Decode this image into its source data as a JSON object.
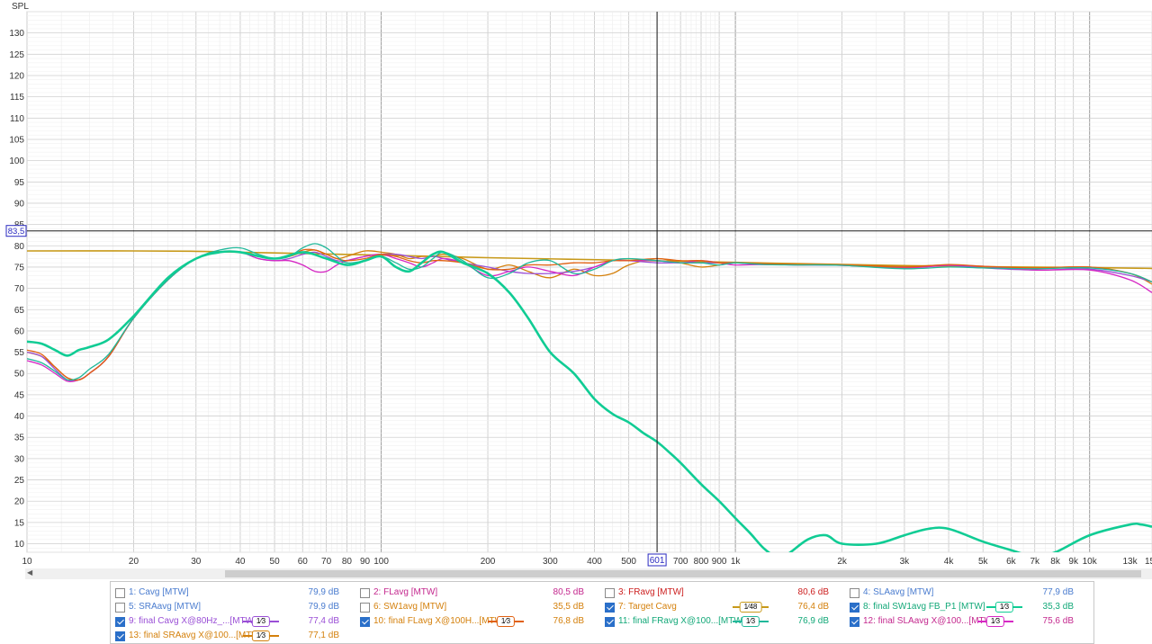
{
  "chart_data": {
    "type": "line",
    "ylabel": "SPL",
    "x_scale": "log",
    "xlim": [
      10,
      15000
    ],
    "ylim": [
      8,
      135
    ],
    "y_ticks": [
      10,
      15,
      20,
      25,
      30,
      35,
      40,
      45,
      50,
      55,
      60,
      65,
      70,
      75,
      80,
      85,
      90,
      95,
      100,
      105,
      110,
      115,
      120,
      125,
      130
    ],
    "x_tick_labels": [
      {
        "v": 10,
        "t": "10"
      },
      {
        "v": 20,
        "t": "20"
      },
      {
        "v": 30,
        "t": "30"
      },
      {
        "v": 40,
        "t": "40"
      },
      {
        "v": 50,
        "t": "50"
      },
      {
        "v": 60,
        "t": "60"
      },
      {
        "v": 70,
        "t": "70"
      },
      {
        "v": 80,
        "t": "80"
      },
      {
        "v": 90,
        "t": "90"
      },
      {
        "v": 100,
        "t": "100"
      },
      {
        "v": 200,
        "t": "200"
      },
      {
        "v": 300,
        "t": "300"
      },
      {
        "v": 400,
        "t": "400"
      },
      {
        "v": 500,
        "t": "500"
      },
      {
        "v": 700,
        "t": "700"
      },
      {
        "v": 800,
        "t": "800"
      },
      {
        "v": 900,
        "t": "900"
      },
      {
        "v": 1000,
        "t": "1k"
      },
      {
        "v": 2000,
        "t": "2k"
      },
      {
        "v": 3000,
        "t": "3k"
      },
      {
        "v": 4000,
        "t": "4k"
      },
      {
        "v": 5000,
        "t": "5k"
      },
      {
        "v": 6000,
        "t": "6k"
      },
      {
        "v": 7000,
        "t": "7k"
      },
      {
        "v": 8000,
        "t": "8k"
      },
      {
        "v": 9000,
        "t": "9k"
      },
      {
        "v": 10000,
        "t": "10k"
      },
      {
        "v": 13000,
        "t": "13k"
      },
      {
        "v": 15000,
        "t": "15k"
      }
    ],
    "cursor": {
      "x": 601,
      "x_label": "601",
      "y": 83.5,
      "y_label": "83,5"
    },
    "grid": true,
    "series": [
      {
        "name": "7: Target Cavg",
        "color": "#c89a1a",
        "width": 1.6,
        "x": [
          10,
          20,
          30,
          40,
          60,
          100,
          200,
          500,
          1000,
          2000,
          5000,
          10000,
          15000
        ],
        "y": [
          78.8,
          78.8,
          78.7,
          78.5,
          78.2,
          77.8,
          77.2,
          76.6,
          76.1,
          75.6,
          75.1,
          74.9,
          74.7
        ]
      },
      {
        "name": "13: final SRAavg X@100...[MTW]",
        "color": "#d4800c",
        "width": 1.3,
        "x": [
          10,
          11,
          12,
          13,
          14,
          15,
          17,
          20,
          25,
          30,
          35,
          40,
          45,
          50,
          55,
          60,
          65,
          70,
          75,
          80,
          90,
          100,
          110,
          120,
          130,
          140,
          150,
          170,
          200,
          230,
          260,
          300,
          350,
          400,
          450,
          500,
          600,
          700,
          800,
          900,
          1000,
          1200,
          1500,
          2000,
          3000,
          4000,
          5000,
          7000,
          10000,
          13000,
          15000
        ],
        "y": [
          55,
          54,
          51.5,
          49,
          48.5,
          50,
          54,
          63,
          72,
          77,
          78.5,
          78.5,
          77.5,
          77,
          77.5,
          78.5,
          79,
          78,
          77,
          77.5,
          78.8,
          78.5,
          78,
          77,
          77.5,
          77.5,
          78,
          77,
          74.5,
          75.5,
          74,
          72.5,
          74.5,
          73,
          73.5,
          75.5,
          77,
          76,
          75,
          75.5,
          76,
          75.8,
          75.5,
          75.6,
          75.2,
          75.5,
          75,
          74.8,
          75,
          73.5,
          71
        ]
      },
      {
        "name": "9: final Cavg X@80Hz_...[MTW]",
        "color": "#9a4fd6",
        "width": 1.3,
        "x": [
          10,
          11,
          12,
          13,
          14,
          15,
          17,
          20,
          25,
          30,
          35,
          40,
          45,
          50,
          55,
          60,
          65,
          70,
          75,
          80,
          90,
          100,
          110,
          120,
          130,
          140,
          150,
          170,
          200,
          230,
          260,
          300,
          350,
          400,
          450,
          500,
          600,
          700,
          800,
          900,
          1000,
          1200,
          1500,
          2000,
          3000,
          4000,
          5000,
          7000,
          10000,
          13000,
          15000
        ],
        "y": [
          55,
          54,
          51,
          48.5,
          48.5,
          50,
          54,
          63,
          72,
          77,
          78.5,
          78.5,
          77,
          76.5,
          77,
          78,
          78.5,
          77.5,
          76.5,
          76.5,
          77.5,
          78,
          78,
          77.5,
          77,
          77.5,
          77,
          76,
          75,
          74,
          73.5,
          73.5,
          74,
          75,
          76.5,
          76.5,
          76,
          76,
          76,
          76,
          76,
          75.6,
          75.6,
          75.4,
          75,
          75.4,
          74.8,
          74.3,
          74.5,
          73,
          71.5
        ]
      },
      {
        "name": "12: final SLAavg X@100...[MTW]",
        "color": "#d628c4",
        "width": 1.3,
        "x": [
          10,
          11,
          12,
          13,
          14,
          15,
          17,
          20,
          25,
          30,
          35,
          40,
          45,
          50,
          55,
          60,
          65,
          70,
          75,
          80,
          90,
          100,
          110,
          120,
          130,
          140,
          150,
          170,
          200,
          230,
          260,
          300,
          350,
          400,
          450,
          500,
          600,
          700,
          800,
          900,
          1000,
          1200,
          1500,
          2000,
          3000,
          4000,
          5000,
          7000,
          10000,
          13000,
          15000
        ],
        "y": [
          53,
          52,
          50,
          48.2,
          48.5,
          50,
          54,
          63,
          72,
          77,
          78.5,
          78.5,
          77,
          76.5,
          76.5,
          75.5,
          74,
          74,
          75.5,
          76.5,
          77.5,
          78,
          77,
          76,
          75,
          76,
          77,
          76,
          73,
          74,
          75,
          74,
          73,
          75,
          76.5,
          76.5,
          76.5,
          76,
          76.5,
          76,
          75.5,
          75.6,
          75.5,
          75.4,
          74.8,
          75.4,
          75.2,
          74.3,
          74.3,
          72,
          69
        ]
      },
      {
        "name": "10: final FLavg X@100H...[MTW]",
        "color": "#e06010",
        "width": 1.3,
        "x": [
          10,
          11,
          12,
          13,
          14,
          15,
          17,
          20,
          25,
          30,
          35,
          40,
          45,
          50,
          55,
          60,
          65,
          70,
          75,
          80,
          90,
          100,
          110,
          120,
          130,
          140,
          150,
          170,
          200,
          230,
          260,
          300,
          350,
          400,
          450,
          500,
          600,
          700,
          800,
          900,
          1000,
          1200,
          1500,
          2000,
          3000,
          4000,
          5000,
          7000,
          10000,
          13000,
          15000
        ],
        "y": [
          55.5,
          54.5,
          51.5,
          49,
          48.5,
          50,
          54,
          63,
          72,
          77,
          78.5,
          78.5,
          77.5,
          77,
          77.5,
          79,
          79,
          78,
          77,
          76.5,
          77,
          78,
          77.5,
          76.5,
          76,
          76.5,
          76.5,
          76,
          74.5,
          74.5,
          75.5,
          75.5,
          76,
          76,
          76.5,
          76.5,
          77,
          76.5,
          76.5,
          76,
          76,
          75.8,
          75.6,
          75.5,
          75,
          75.6,
          75.2,
          74.8,
          75,
          73.5,
          71.5
        ]
      },
      {
        "name": "11: final FRavg X@100...[MTW]",
        "color": "#20b89a",
        "width": 1.3,
        "x": [
          10,
          11,
          12,
          13,
          14,
          15,
          17,
          20,
          25,
          30,
          35,
          40,
          45,
          50,
          55,
          60,
          65,
          70,
          75,
          80,
          90,
          100,
          110,
          120,
          130,
          140,
          150,
          170,
          200,
          230,
          260,
          300,
          350,
          400,
          450,
          500,
          600,
          700,
          800,
          900,
          1000,
          1200,
          1500,
          2000,
          3000,
          4000,
          5000,
          7000,
          10000,
          13000,
          15000
        ],
        "y": [
          53.5,
          52.5,
          50.5,
          48.5,
          49,
          51,
          54.5,
          63,
          72,
          77,
          79,
          79.5,
          78,
          77,
          77.5,
          79.5,
          80.5,
          79.5,
          77.5,
          76,
          76.5,
          77.5,
          76,
          74.5,
          75,
          77,
          78.5,
          76.5,
          72.5,
          73.5,
          76,
          76.5,
          73.5,
          74.5,
          76.5,
          77,
          76.5,
          76,
          76,
          75.5,
          76,
          75.6,
          75.5,
          75.4,
          74.6,
          75,
          74.8,
          74.6,
          74.8,
          73.5,
          71.5
        ]
      },
      {
        "name": "8: final SW1avg FB_P1 [MTW]",
        "color": "#10cc94",
        "width": 2.6,
        "x": [
          10,
          11,
          12,
          13,
          14,
          15,
          17,
          20,
          25,
          30,
          35,
          40,
          50,
          60,
          70,
          80,
          90,
          100,
          110,
          120,
          130,
          140,
          150,
          170,
          200,
          230,
          260,
          300,
          350,
          400,
          450,
          500,
          550,
          600,
          650,
          700,
          800,
          900,
          1000,
          1100,
          1200,
          1300,
          1400,
          1600,
          1800,
          2000,
          2500,
          3000,
          3500,
          4000,
          5000,
          6000,
          7000,
          8000,
          10000,
          13000,
          14000,
          15000
        ],
        "y": [
          57.5,
          57,
          55.5,
          54.2,
          55.5,
          56.2,
          58,
          63.5,
          72.5,
          77,
          78.5,
          78.5,
          77,
          78.5,
          77,
          75.5,
          76.5,
          77.5,
          75,
          74,
          76,
          78,
          78.5,
          76,
          73.5,
          69,
          63,
          55,
          50,
          44,
          40.5,
          38.5,
          36,
          34,
          31.5,
          29,
          24,
          20,
          16,
          12.5,
          9,
          7,
          7.5,
          11,
          12,
          10,
          10,
          12,
          13.5,
          13.5,
          10.5,
          8.5,
          7,
          8,
          12,
          14.5,
          14.5,
          14
        ]
      }
    ]
  },
  "legend": {
    "rows": [
      [
        {
          "label": "1: Cavg [MTW]",
          "value": "79,9 dB",
          "checked": false,
          "color": "#4a7ccf"
        },
        {
          "label": "2: FLavg [MTW]",
          "value": "80,5 dB",
          "checked": false,
          "color": "#c4288e"
        },
        {
          "label": "3: FRavg [MTW]",
          "value": "80,6 dB",
          "checked": false,
          "color": "#cc1f1f"
        },
        {
          "label": "4: SLAavg [MTW]",
          "value": "77,9 dB",
          "checked": false,
          "color": "#4a7ccf"
        }
      ],
      [
        {
          "label": "5: SRAavg [MTW]",
          "value": "79,9 dB",
          "checked": false,
          "color": "#4a7ccf"
        },
        {
          "label": "6: SW1avg [MTW]",
          "value": "35,5 dB",
          "checked": false,
          "color": "#d4800c"
        },
        {
          "label": "7: Target Cavg",
          "value": "76,4 dB",
          "checked": true,
          "color": "#d4800c",
          "smoothing": "1⁄48",
          "swatch": "#c89a1a"
        },
        {
          "label": "8: final SW1avg FB_P1 [MTW]",
          "value": "35,3 dB",
          "checked": true,
          "color": "#12a878",
          "smoothing": "1⁄3",
          "swatch": "#10cc94"
        }
      ],
      [
        {
          "label": "9: final Cavg X@80Hz_...[MTW]",
          "value": "77,4 dB",
          "checked": true,
          "color": "#9a4fd6",
          "smoothing": "1⁄3",
          "swatch": "#9a4fd6"
        },
        {
          "label": "10: final FLavg X@100H...[MTW]",
          "value": "76,8 dB",
          "checked": true,
          "color": "#d4800c",
          "smoothing": "1⁄3",
          "swatch": "#e06010"
        },
        {
          "label": "11: final FRavg X@100...[MTW]",
          "value": "76,9 dB",
          "checked": true,
          "color": "#12a878",
          "smoothing": "1⁄3",
          "swatch": "#20b89a"
        },
        {
          "label": "12: final SLAavg X@100...[MTW]",
          "value": "75,6 dB",
          "checked": true,
          "color": "#c4288e",
          "smoothing": "1⁄3",
          "swatch": "#d628c4"
        }
      ],
      [
        {
          "label": "13: final SRAavg X@100...[MTW]",
          "value": "77,1 dB",
          "checked": true,
          "color": "#d4800c",
          "smoothing": "1⁄3",
          "swatch": "#d4800c"
        }
      ]
    ]
  }
}
